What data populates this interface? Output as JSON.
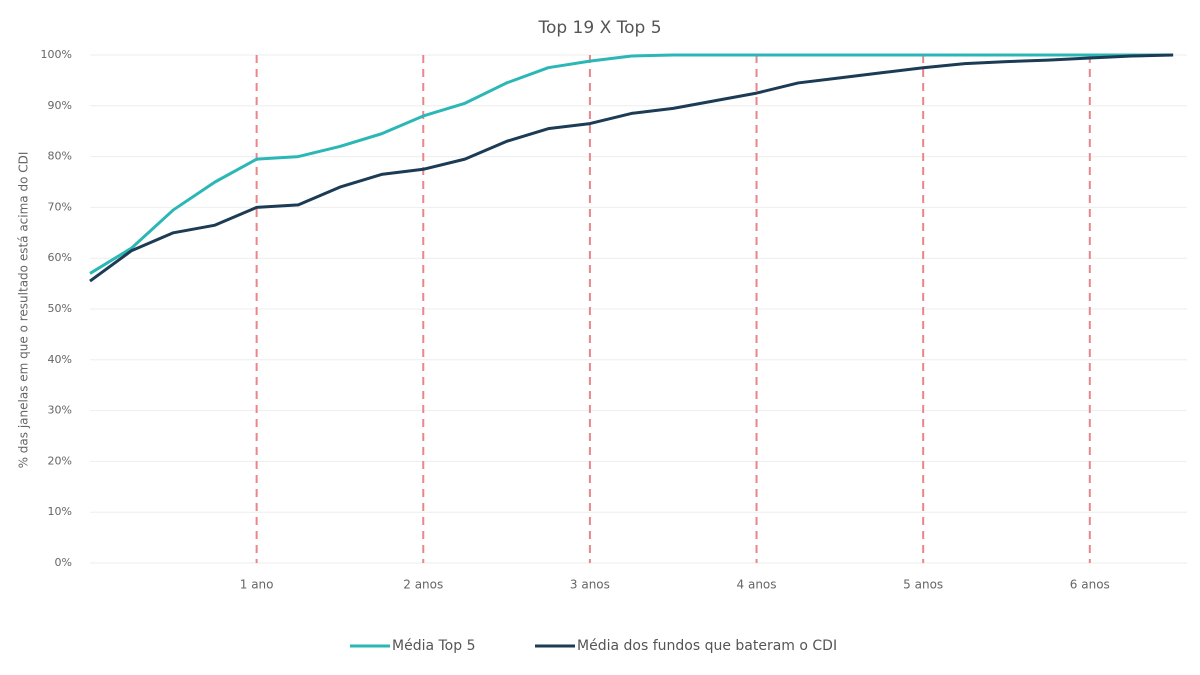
{
  "chart_data": {
    "type": "line",
    "title": "Top 19 X Top 5",
    "y_label": "% das janelas em que o resultado está acima do CDI",
    "x": [
      0,
      3,
      6,
      9,
      12,
      15,
      18,
      21,
      24,
      27,
      30,
      33,
      36,
      39,
      42,
      45,
      48,
      51,
      54,
      57,
      60,
      63,
      66,
      69,
      72,
      75,
      78
    ],
    "series": [
      {
        "name": "Média Top 5",
        "color": "#2bb7b5",
        "values": [
          57,
          62,
          69.5,
          75,
          79.5,
          80,
          82,
          84.5,
          88,
          90.5,
          94.5,
          97.5,
          98.8,
          99.8,
          100,
          100,
          100,
          100,
          100,
          100,
          100,
          100,
          100,
          100,
          100,
          100,
          100
        ]
      },
      {
        "name": "Média dos fundos que bateram o CDI",
        "color": "#1c3b54",
        "values": [
          55.5,
          61.5,
          65,
          66.5,
          70,
          70.5,
          74,
          76.5,
          77.5,
          79.5,
          83,
          85.5,
          86.5,
          88.5,
          89.5,
          91,
          92.5,
          94.5,
          95.5,
          96.5,
          97.5,
          98.3,
          98.7,
          99,
          99.4,
          99.8,
          100
        ]
      }
    ],
    "xlim": [
      0,
      79
    ],
    "xticks": [
      {
        "value": 12,
        "label": "1 ano"
      },
      {
        "value": 24,
        "label": "2 anos"
      },
      {
        "value": 36,
        "label": "3 anos"
      },
      {
        "value": 48,
        "label": "4 anos"
      },
      {
        "value": 60,
        "label": "5 anos"
      },
      {
        "value": 72,
        "label": "6 anos"
      }
    ],
    "ylim": [
      0,
      100
    ],
    "yticks": [
      {
        "value": 0,
        "label": "0%"
      },
      {
        "value": 10,
        "label": "10%"
      },
      {
        "value": 20,
        "label": "20%"
      },
      {
        "value": 30,
        "label": "30%"
      },
      {
        "value": 40,
        "label": "40%"
      },
      {
        "value": 50,
        "label": "50%"
      },
      {
        "value": 60,
        "label": "60%"
      },
      {
        "value": 70,
        "label": "70%"
      },
      {
        "value": 80,
        "label": "80%"
      },
      {
        "value": 90,
        "label": "90%"
      },
      {
        "value": 100,
        "label": "100%"
      }
    ],
    "grid": true,
    "legend": "bottom"
  }
}
